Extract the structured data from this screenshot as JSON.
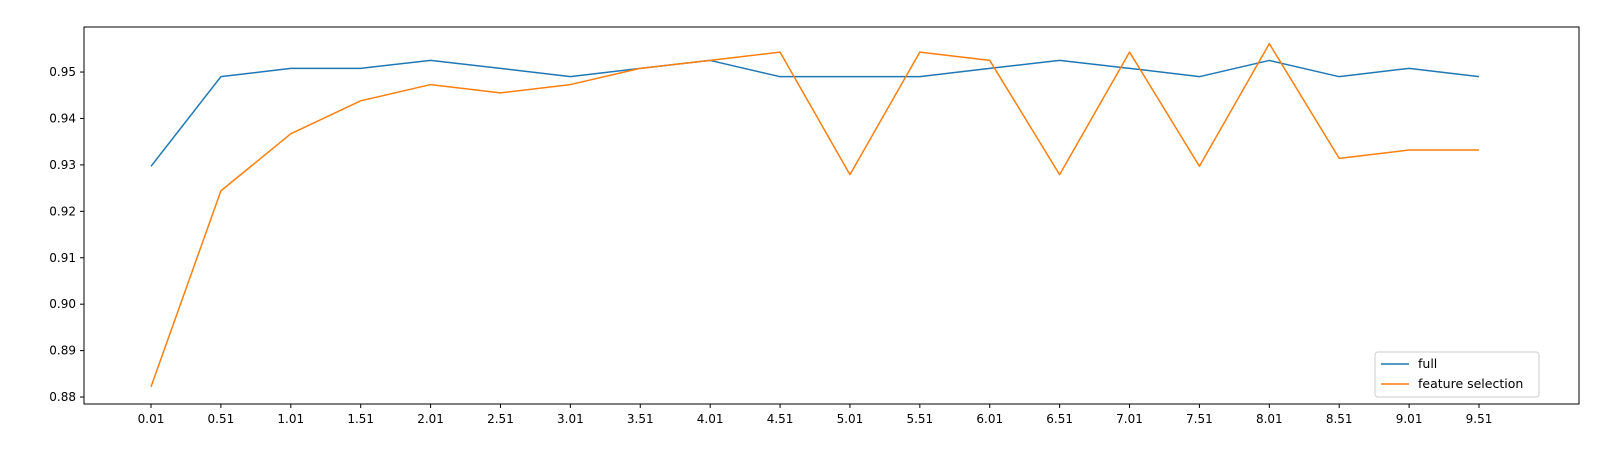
{
  "chart_data": {
    "type": "line",
    "title": "",
    "xlabel": "",
    "ylabel": "",
    "x": [
      0.01,
      0.51,
      1.01,
      1.51,
      2.01,
      2.51,
      3.01,
      3.51,
      4.01,
      4.51,
      5.01,
      5.51,
      6.01,
      6.51,
      7.01,
      7.51,
      8.01,
      8.51,
      9.01,
      9.51
    ],
    "x_tick_labels": [
      "0.01",
      "0.51",
      "1.01",
      "1.51",
      "2.01",
      "2.51",
      "3.01",
      "3.51",
      "4.01",
      "4.51",
      "5.01",
      "5.51",
      "6.01",
      "6.51",
      "7.01",
      "7.51",
      "8.01",
      "8.51",
      "9.01",
      "9.51"
    ],
    "ylim": [
      0.8785,
      0.9597
    ],
    "y_ticks": [
      0.88,
      0.89,
      0.9,
      0.91,
      0.92,
      0.93,
      0.94,
      0.95
    ],
    "y_tick_labels": [
      "0.88",
      "0.89",
      "0.90",
      "0.91",
      "0.92",
      "0.93",
      "0.94",
      "0.95"
    ],
    "grid": false,
    "legend_position": "bottom-right",
    "series": [
      {
        "name": "full",
        "color": "#1f77b4",
        "values": [
          0.9297,
          0.949,
          0.9508,
          0.9508,
          0.9525,
          0.9508,
          0.949,
          0.9508,
          0.9525,
          0.949,
          0.949,
          0.949,
          0.9508,
          0.9525,
          0.9508,
          0.949,
          0.9525,
          0.949,
          0.9508,
          0.949
        ]
      },
      {
        "name": "feature selection",
        "color": "#ff7f0e",
        "values": [
          0.8822,
          0.9244,
          0.9367,
          0.9438,
          0.9473,
          0.9455,
          0.9473,
          0.9508,
          0.9525,
          0.9543,
          0.9279,
          0.9543,
          0.9525,
          0.9279,
          0.9543,
          0.9297,
          0.9561,
          0.9314,
          0.9332,
          0.9332
        ]
      }
    ]
  }
}
